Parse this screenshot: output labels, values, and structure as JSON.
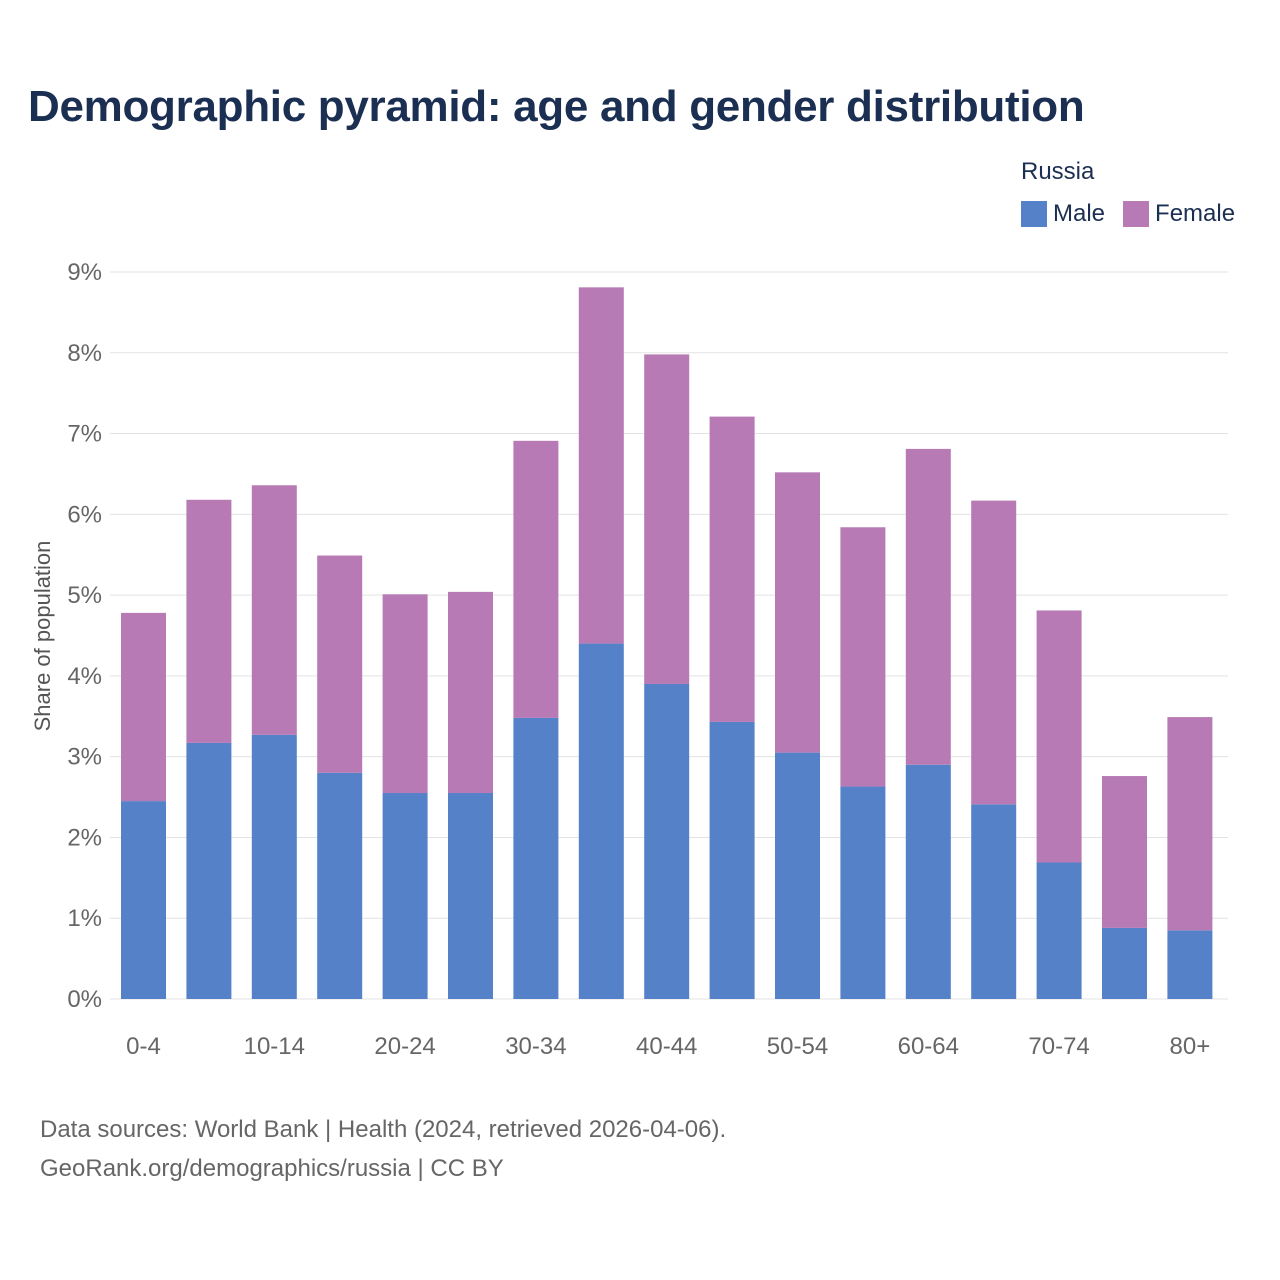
{
  "chart_data": {
    "type": "bar",
    "stacked": true,
    "title": "Demographic pyramid: age and gender distribution",
    "legend_title": "Russia",
    "ylabel": "Share of population",
    "xlabel": "",
    "ylim": [
      0,
      9
    ],
    "yticks": [
      0,
      1,
      2,
      3,
      4,
      5,
      6,
      7,
      8,
      9
    ],
    "ytick_labels": [
      "0%",
      "1%",
      "2%",
      "3%",
      "4%",
      "5%",
      "6%",
      "7%",
      "8%",
      "9%"
    ],
    "categories": [
      "0-4",
      "5-9",
      "10-14",
      "15-19",
      "20-24",
      "25-29",
      "30-34",
      "35-39",
      "40-44",
      "45-49",
      "50-54",
      "55-59",
      "60-64",
      "65-69",
      "70-74",
      "75-79",
      "80+"
    ],
    "shown_xtick_labels": [
      "0-4",
      "10-14",
      "20-24",
      "30-34",
      "40-44",
      "50-54",
      "60-64",
      "70-74",
      "80+"
    ],
    "series": [
      {
        "name": "Male",
        "color": "#5581c8",
        "values": [
          2.45,
          3.17,
          3.27,
          2.8,
          2.55,
          2.55,
          3.48,
          4.4,
          3.9,
          3.43,
          3.05,
          2.63,
          2.9,
          2.41,
          1.69,
          0.88,
          0.85
        ]
      },
      {
        "name": "Female",
        "color": "#b77ab5",
        "values": [
          2.33,
          3.01,
          3.09,
          2.69,
          2.46,
          2.49,
          3.43,
          4.41,
          4.08,
          3.78,
          3.47,
          3.21,
          3.91,
          3.76,
          3.12,
          1.88,
          2.64
        ]
      }
    ],
    "grid": true,
    "legend_position": "top-right"
  },
  "footer": {
    "source_line": "Data sources: World Bank | Health (2024, retrieved 2026-04-06).",
    "credit_line": "GeoRank.org/demographics/russia | CC BY"
  }
}
